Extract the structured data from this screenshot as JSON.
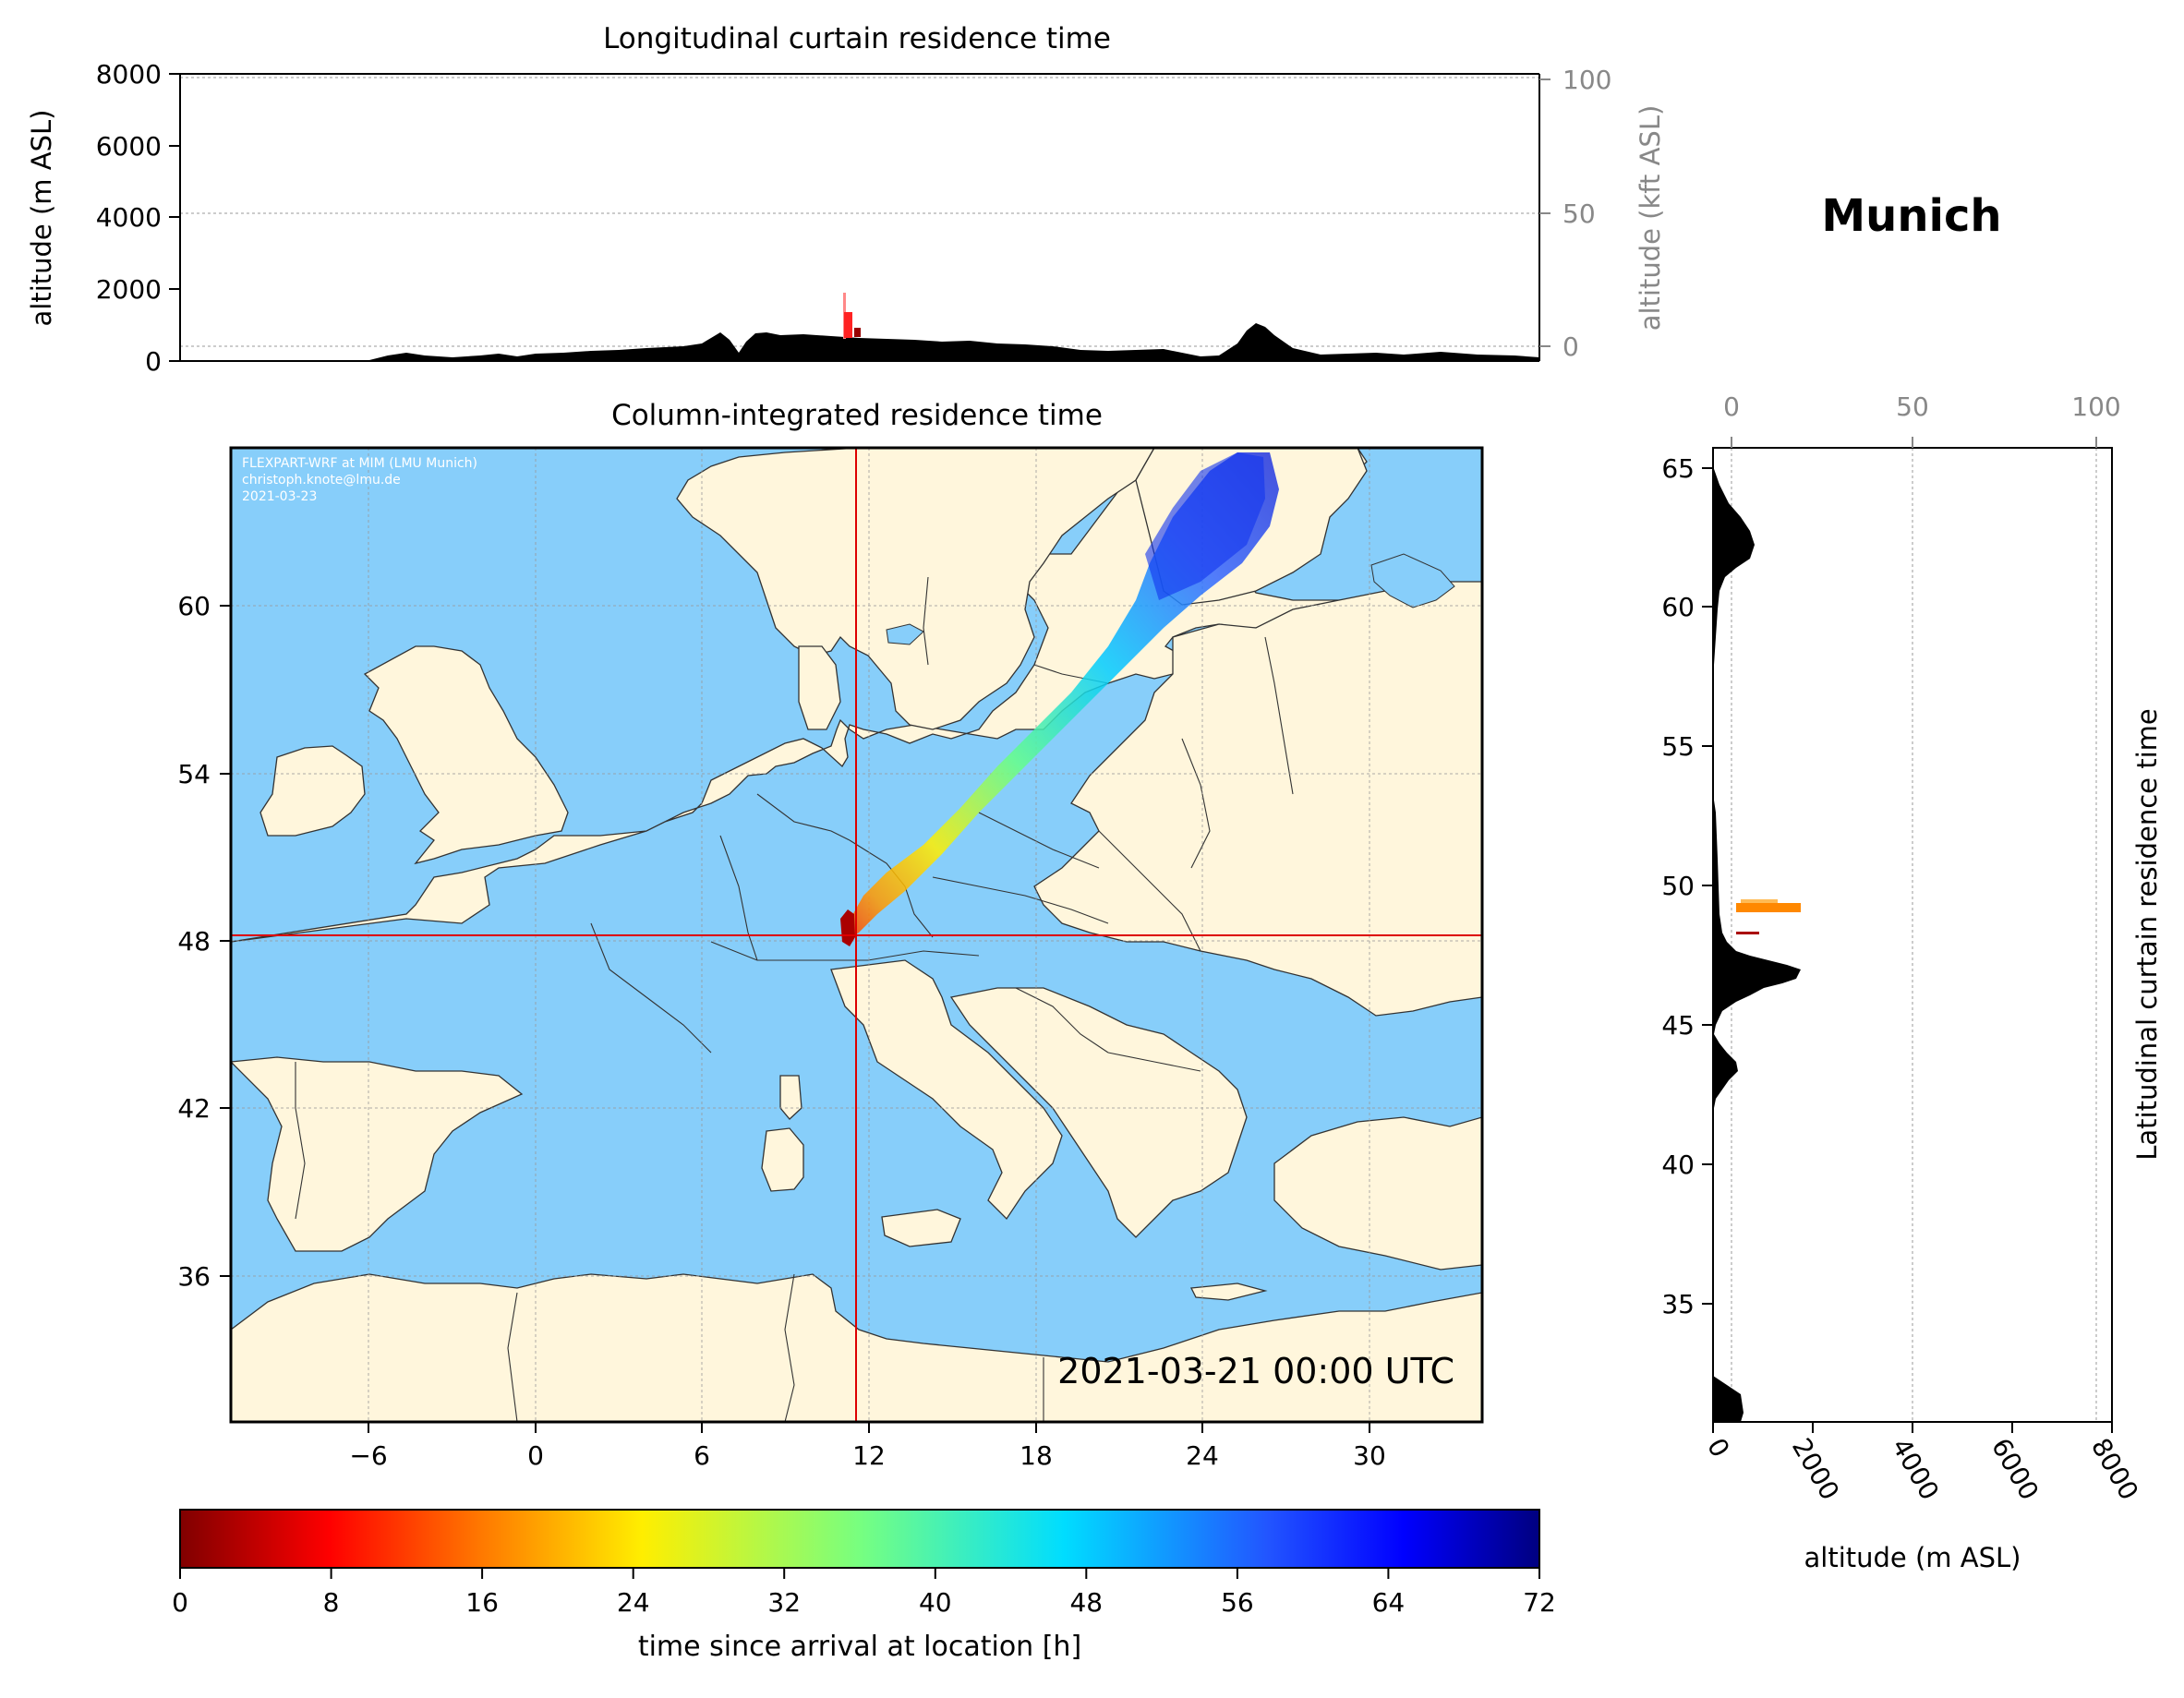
{
  "location_title": "Munich",
  "top_panel": {
    "title": "Longitudinal curtain residence time",
    "ylabel_left": "altitude (m ASL)",
    "ylabel_right": "altitude (kft ASL)",
    "left_ticks": [
      "0",
      "2000",
      "4000",
      "6000",
      "8000"
    ],
    "right_ticks": [
      "0",
      "50",
      "100"
    ]
  },
  "map_panel": {
    "title": "Column-integrated residence time",
    "credit_line1": "FLEXPART-WRF at MIM (LMU Munich)",
    "credit_line2": "christoph.knote@lmu.de",
    "credit_line3": "2021-03-23",
    "timestamp": "2021-03-21 00:00 UTC",
    "lon_ticks": [
      "−6",
      "0",
      "6",
      "12",
      "18",
      "24",
      "30"
    ],
    "lat_ticks": [
      "60",
      "54",
      "48",
      "42",
      "36"
    ],
    "crosshair": {
      "lon": 11.6,
      "lat": 48.15
    }
  },
  "right_panel": {
    "ylabel": "Latitudinal curtain residence time",
    "xlabel": "altitude (m ASL)",
    "bottom_ticks": [
      "0",
      "2000",
      "4000",
      "6000",
      "8000"
    ],
    "top_ticks": [
      "0",
      "50",
      "100"
    ],
    "lat_ticks": [
      "65",
      "60",
      "55",
      "50",
      "45",
      "40",
      "35"
    ]
  },
  "colorbar": {
    "label": "time since arrival at location [h]",
    "ticks": [
      "0",
      "8",
      "16",
      "24",
      "32",
      "40",
      "48",
      "56",
      "64",
      "72"
    ],
    "min": 0,
    "max": 72,
    "colormap": "jet_r"
  },
  "colors": {
    "sea": "#87cefa",
    "land": "#fff6dc",
    "crosshair": "#dd0000",
    "terrain": "#000000"
  }
}
